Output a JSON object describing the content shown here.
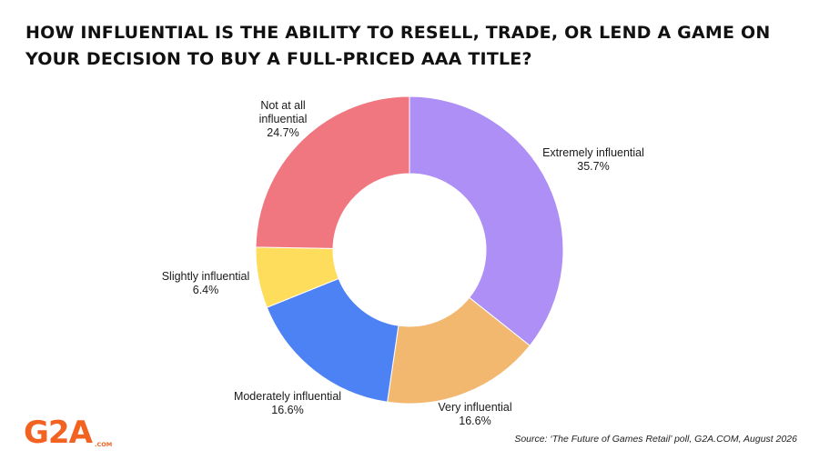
{
  "title": "HOW INFLUENTIAL IS THE ABILITY TO RESELL, TRADE, OR LEND A GAME ON YOUR DECISION TO BUY A FULL-PRICED AAA TITLE?",
  "source": "Source: ‘The Future of Games Retail’ poll, G2A.COM, August 2026",
  "logo": {
    "main": "G2A",
    "sub": ".COM",
    "color": "#f26322"
  },
  "chart_data": {
    "type": "pie",
    "style": "donut",
    "start_angle": "12 o'clock",
    "direction": "clockwise",
    "slices": [
      {
        "label_lines": [
          "Extremely influential",
          "35.7%"
        ],
        "label": "Extremely influential",
        "value": 35.7,
        "color": "#ad8ff5"
      },
      {
        "label_lines": [
          "Very influential",
          "16.6%"
        ],
        "label": "Very influential",
        "value": 16.6,
        "color": "#f2b870"
      },
      {
        "label_lines": [
          "Moderately influential",
          "16.6%"
        ],
        "label": "Moderately influential",
        "value": 16.6,
        "color": "#4d82f5"
      },
      {
        "label_lines": [
          "Slightly influential",
          "6.4%"
        ],
        "label": "Slightly influential",
        "value": 6.4,
        "color": "#ffdd5c"
      },
      {
        "label_lines": [
          "Not at all",
          "influential",
          "24.7%"
        ],
        "label": "Not at all influential",
        "value": 24.7,
        "color": "#f07780"
      }
    ]
  }
}
